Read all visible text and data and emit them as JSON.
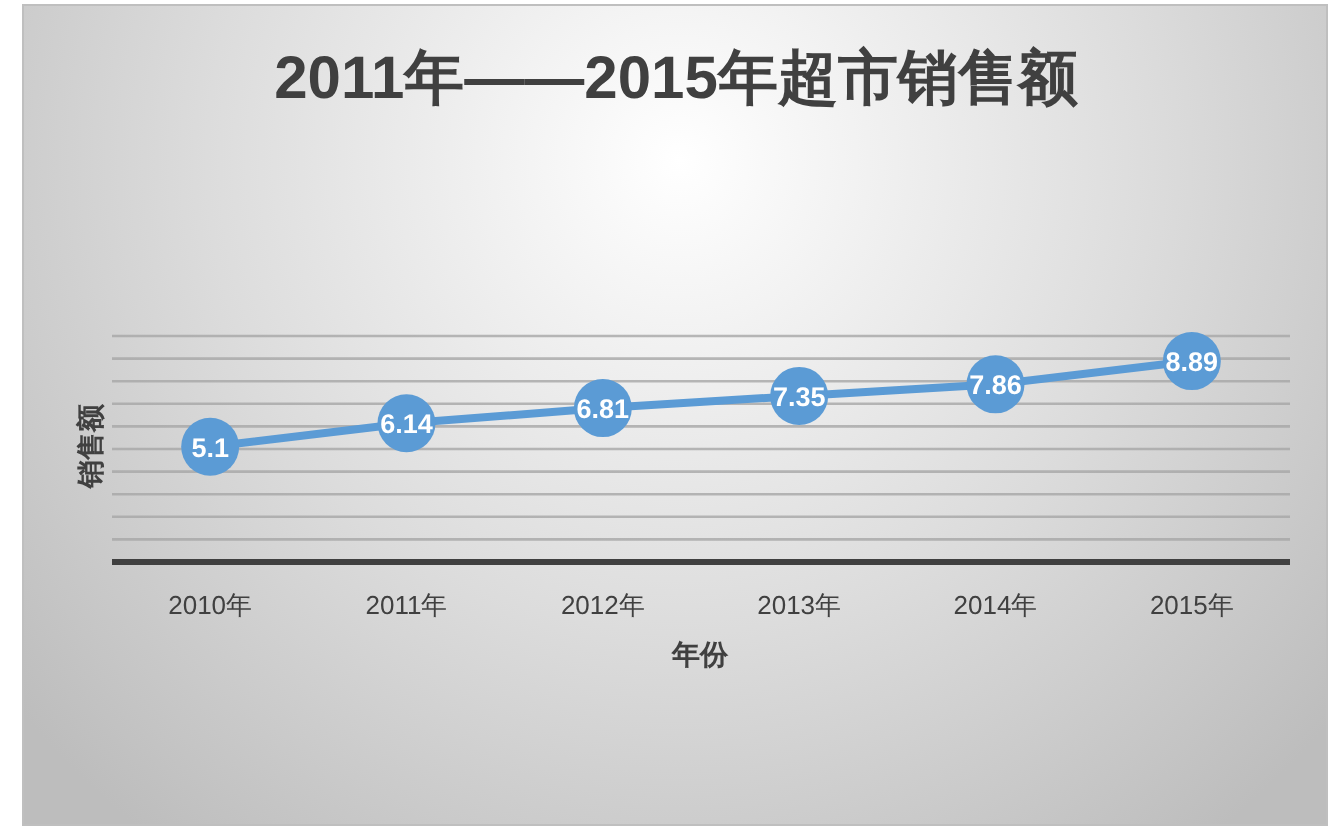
{
  "chart_data": {
    "type": "line",
    "title": "2011年——2015年超市销售额",
    "xlabel": "年份",
    "ylabel": "销售额",
    "categories": [
      "2010年",
      "2011年",
      "2012年",
      "2013年",
      "2014年",
      "2015年"
    ],
    "series": [
      {
        "color": "#5b9bd5",
        "values": [
          5.1,
          6.14,
          6.81,
          7.35,
          7.86,
          8.89
        ]
      }
    ],
    "ylim": [
      0,
      10
    ],
    "yticks": [
      {
        "value": 0,
        "label": null
      },
      {
        "value": 1,
        "label": null
      },
      {
        "value": 2,
        "label": null
      },
      {
        "value": 3,
        "label": null
      },
      {
        "value": 4,
        "label": null
      },
      {
        "value": 5,
        "label": null
      },
      {
        "value": 6,
        "label": null
      },
      {
        "value": 7,
        "label": null
      },
      {
        "value": 8,
        "label": null
      },
      {
        "value": 9,
        "label": null
      },
      {
        "value": 10,
        "label": null
      }
    ],
    "grid": "y",
    "tick_labels": "x",
    "marker": "circle",
    "line_style": "solid",
    "data_labels": true
  }
}
